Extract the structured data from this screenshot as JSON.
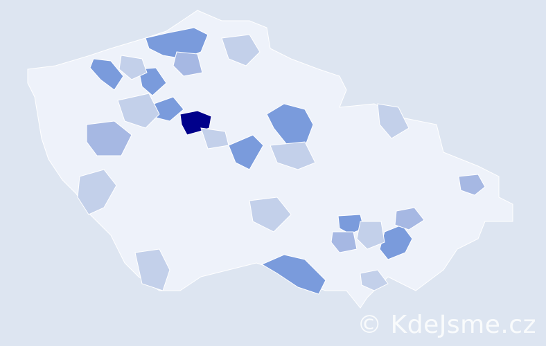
{
  "map": {
    "colors": {
      "background": "#dde5f1",
      "base": "#eef2fa",
      "border": "#ffffff",
      "light": "#c3d0ea",
      "medium": "#a6b8e3",
      "strong": "#7a9bdc",
      "max": "#00008b"
    }
  },
  "watermark": {
    "text": "© KdeJsme.cz"
  }
}
